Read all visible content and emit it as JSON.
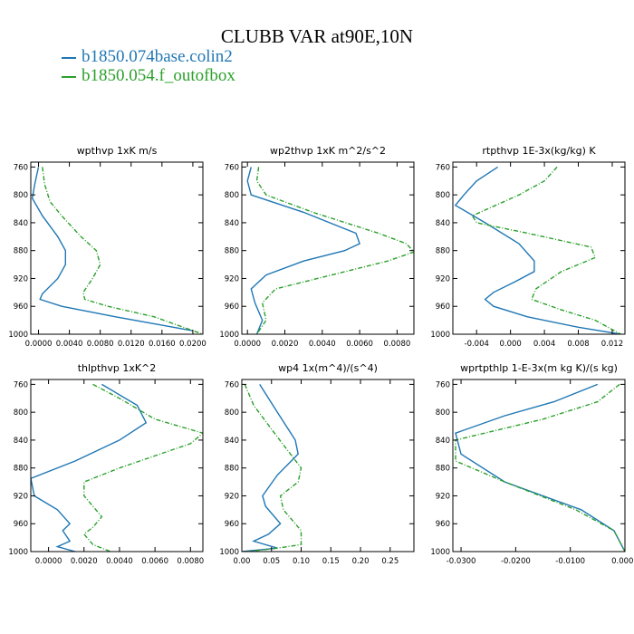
{
  "figure": {
    "title": "CLUBB VAR at90E,10N",
    "legend": [
      {
        "label": "b1850.074base.colin2",
        "color": "#1f77b4"
      },
      {
        "label": "b1850.054.f_outofbox",
        "color": "#2ca02c"
      }
    ]
  },
  "chart_data": [
    {
      "type": "line",
      "title": "wpthvp   1xK m/s",
      "xlim": [
        -0.001,
        0.0213
      ],
      "xticks": [
        0,
        0.004,
        0.008,
        0.012,
        0.016,
        0.02
      ],
      "xtick_labels": [
        "0.0000",
        "0.0040",
        "0.0080",
        "0.0120",
        "0.0160",
        "0.0200"
      ],
      "ylim": [
        1000,
        753
      ],
      "yticks": [
        760,
        800,
        840,
        880,
        920,
        960,
        1000
      ],
      "series": [
        {
          "name": "b1850.074base.colin2",
          "x": [
            0.0,
            -0.0005,
            -0.0008,
            0.0005,
            0.0025,
            0.0035,
            0.0035,
            0.0025,
            0.0005,
            0.0002,
            0.003,
            0.01,
            0.02
          ],
          "y": [
            760,
            785,
            805,
            830,
            860,
            880,
            900,
            920,
            942,
            950,
            960,
            975,
            995
          ]
        },
        {
          "name": "b1850.054.f_outofbox",
          "x": [
            0.0005,
            0.0008,
            0.0015,
            0.003,
            0.0055,
            0.0075,
            0.008,
            0.007,
            0.0058,
            0.006,
            0.009,
            0.015,
            0.0213
          ],
          "y": [
            760,
            785,
            810,
            830,
            860,
            880,
            900,
            920,
            940,
            950,
            960,
            975,
            1000
          ]
        }
      ]
    },
    {
      "type": "line",
      "title": "wp2thvp   1xK m^2/s^2",
      "xlim": [
        -0.0003,
        0.0089
      ],
      "xticks": [
        0,
        0.002,
        0.004,
        0.006,
        0.008
      ],
      "xtick_labels": [
        "0.0000",
        "0.0020",
        "0.0040",
        "0.0060",
        "0.0080"
      ],
      "ylim": [
        1000,
        753
      ],
      "yticks": [
        760,
        800,
        840,
        880,
        920,
        960,
        1000
      ],
      "series": [
        {
          "name": "b1850.074base.colin2",
          "x": [
            0.0002,
            0.0,
            0.0002,
            0.003,
            0.0058,
            0.006,
            0.0052,
            0.003,
            0.001,
            0.0002,
            0.0004,
            0.0008,
            0.0005
          ],
          "y": [
            760,
            780,
            800,
            825,
            855,
            870,
            880,
            895,
            915,
            935,
            955,
            980,
            1000
          ]
        },
        {
          "name": "b1850.054.f_outofbox",
          "x": [
            0.0006,
            0.0005,
            0.001,
            0.0035,
            0.007,
            0.0085,
            0.0089,
            0.0075,
            0.0045,
            0.0015,
            0.0008,
            0.001,
            0.0005
          ],
          "y": [
            760,
            780,
            800,
            825,
            855,
            870,
            882,
            895,
            915,
            935,
            955,
            980,
            1000
          ]
        }
      ]
    },
    {
      "type": "line",
      "title": "rtpthvp   1E-3x(kg/kg) K",
      "xlim": [
        -0.0068,
        0.0135
      ],
      "xticks": [
        -0.004,
        0,
        0.004,
        0.008,
        0.012
      ],
      "xtick_labels": [
        "-0.004",
        "0.000",
        "0.004",
        "0.008",
        "0.012"
      ],
      "ylim": [
        1000,
        753
      ],
      "yticks": [
        760,
        800,
        840,
        880,
        920,
        960,
        1000
      ],
      "series": [
        {
          "name": "b1850.074base.colin2",
          "x": [
            -0.0015,
            -0.004,
            -0.0055,
            -0.0065,
            -0.003,
            0.001,
            0.0028,
            0.0028,
            0.0005,
            -0.002,
            -0.003,
            -0.002,
            0.002,
            0.008,
            0.013
          ],
          "y": [
            760,
            780,
            800,
            815,
            840,
            870,
            895,
            910,
            925,
            940,
            950,
            960,
            975,
            990,
            1000
          ]
        },
        {
          "name": "b1850.054.f_outofbox",
          "x": [
            0.0055,
            0.004,
            0.001,
            -0.0045,
            -0.004,
            0.002,
            0.0095,
            0.01,
            0.006,
            0.003,
            0.0025,
            0.006,
            0.01,
            0.013
          ],
          "y": [
            760,
            780,
            800,
            830,
            840,
            855,
            875,
            890,
            910,
            935,
            950,
            965,
            980,
            1000
          ]
        }
      ]
    },
    {
      "type": "line",
      "title": "thlpthvp   1xK^2",
      "xlim": [
        -0.001,
        0.0087
      ],
      "xticks": [
        0,
        0.002,
        0.004,
        0.006,
        0.008
      ],
      "xtick_labels": [
        "0.0000",
        "0.0020",
        "0.0040",
        "0.0060",
        "0.0080"
      ],
      "ylim": [
        1000,
        753
      ],
      "yticks": [
        760,
        800,
        840,
        880,
        920,
        960,
        1000
      ],
      "series": [
        {
          "name": "b1850.074base.colin2",
          "x": [
            0.003,
            0.005,
            0.0055,
            0.004,
            0.0015,
            -0.001,
            -0.0008,
            0.0005,
            0.0012,
            0.0008,
            0.0012,
            0.0005,
            0.0015
          ],
          "y": [
            760,
            790,
            815,
            840,
            870,
            895,
            920,
            940,
            960,
            970,
            985,
            993,
            1000
          ]
        },
        {
          "name": "b1850.054.f_outofbox",
          "x": [
            0.0025,
            0.004,
            0.006,
            0.0087,
            0.008,
            0.004,
            0.002,
            0.002,
            0.003,
            0.0025,
            0.002,
            0.0025,
            0.0035
          ],
          "y": [
            760,
            780,
            810,
            830,
            845,
            880,
            900,
            920,
            950,
            965,
            975,
            990,
            1000
          ]
        }
      ]
    },
    {
      "type": "line",
      "title": "wp4   1x(m^4)/(s^4)",
      "xlim": [
        0,
        0.29
      ],
      "xticks": [
        0,
        0.05,
        0.1,
        0.15,
        0.2,
        0.25
      ],
      "xtick_labels": [
        "0.00",
        "0.05",
        "0.10",
        "0.15",
        "0.20",
        "0.25"
      ],
      "ylim": [
        1000,
        753
      ],
      "yticks": [
        760,
        800,
        840,
        880,
        920,
        960,
        1000
      ],
      "series": [
        {
          "name": "b1850.074base.colin2",
          "x": [
            0.03,
            0.06,
            0.09,
            0.095,
            0.06,
            0.035,
            0.04,
            0.065,
            0.045,
            0.02,
            0.06,
            0.0
          ],
          "y": [
            760,
            800,
            840,
            860,
            890,
            920,
            935,
            960,
            975,
            985,
            995,
            1000
          ]
        },
        {
          "name": "b1850.054.f_outofbox",
          "x": [
            0.005,
            0.02,
            0.055,
            0.1,
            0.095,
            0.065,
            0.07,
            0.1,
            0.1,
            0.06,
            0.01
          ],
          "y": [
            760,
            790,
            830,
            880,
            900,
            920,
            940,
            970,
            990,
            995,
            1000
          ]
        }
      ]
    },
    {
      "type": "line",
      "title": "wprtpthlp   1-E-3x(m kg K)/(s kg)",
      "xlim": [
        -0.0315,
        0.0
      ],
      "xticks": [
        -0.03,
        -0.02,
        -0.01,
        0
      ],
      "xtick_labels": [
        "-0.0300",
        "-0.0200",
        "-0.0100",
        "0.0000"
      ],
      "ylim": [
        1000,
        753
      ],
      "yticks": [
        760,
        800,
        840,
        880,
        920,
        960,
        1000
      ],
      "series": [
        {
          "name": "b1850.074base.colin2",
          "x": [
            -0.005,
            -0.013,
            -0.022,
            -0.031,
            -0.03,
            -0.022,
            -0.008,
            -0.002,
            0.0
          ],
          "y": [
            760,
            785,
            805,
            830,
            860,
            900,
            940,
            970,
            1000
          ]
        },
        {
          "name": "b1850.054.f_outofbox",
          "x": [
            -0.001,
            -0.005,
            -0.015,
            -0.031,
            -0.031,
            -0.022,
            -0.009,
            -0.002,
            0.0
          ],
          "y": [
            760,
            785,
            810,
            840,
            870,
            900,
            940,
            970,
            1000
          ]
        }
      ]
    }
  ]
}
